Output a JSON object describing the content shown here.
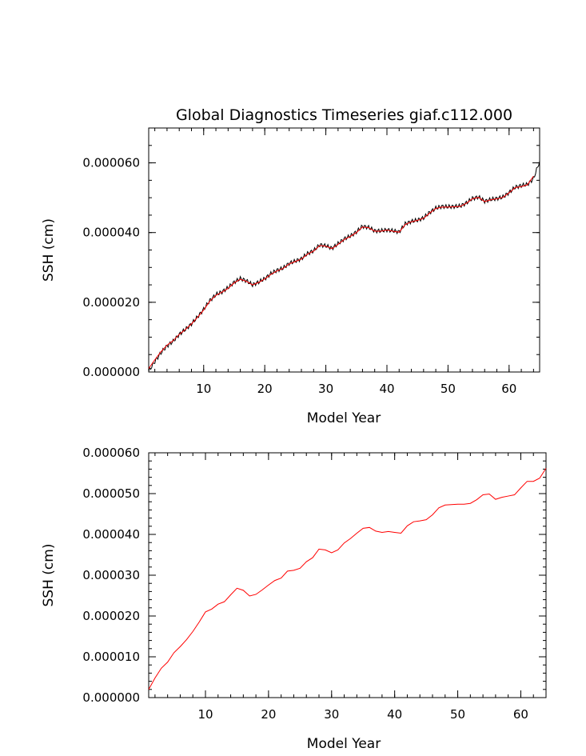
{
  "chart_data": [
    {
      "type": "line",
      "title": "Global Diagnostics Timeseries giaf.c112.000",
      "xlabel": "Model Year",
      "ylabel": "SSH (cm)",
      "xlim": [
        1,
        65
      ],
      "ylim": [
        0,
        7e-05
      ],
      "xticks": [
        10,
        20,
        30,
        40,
        50,
        60
      ],
      "yticks": [
        0.0,
        2e-05,
        4e-05,
        6e-05
      ],
      "ytick_labels": [
        "0.000000",
        "0.000020",
        "0.000040",
        "0.000060"
      ],
      "x_minor_step": 2,
      "y_minor_step": 5e-06,
      "grid": false,
      "series": [
        {
          "color": "#000000",
          "style": "monthly",
          "x": [
            1,
            2,
            3,
            4,
            5,
            6,
            7,
            8,
            9,
            10,
            11,
            12,
            13,
            14,
            15,
            16,
            17,
            18,
            19,
            20,
            21,
            22,
            23,
            24,
            25,
            26,
            27,
            28,
            29,
            30,
            31,
            32,
            33,
            34,
            35,
            36,
            37,
            38,
            39,
            40,
            41,
            42,
            43,
            44,
            45,
            46,
            47,
            48,
            49,
            50,
            51,
            52,
            53,
            54,
            55,
            56,
            57,
            58,
            59,
            60,
            61,
            62,
            63,
            64,
            65
          ],
          "values": [
            2e-07,
            3e-06,
            5.5e-06,
            7.5e-06,
            8.8e-06,
            1.08e-05,
            1.22e-05,
            1.38e-05,
            1.58e-05,
            1.8e-05,
            2.05e-05,
            2.22e-05,
            2.3e-05,
            2.42e-05,
            2.58e-05,
            2.68e-05,
            2.62e-05,
            2.5e-05,
            2.58e-05,
            2.68e-05,
            2.82e-05,
            2.92e-05,
            2.98e-05,
            3.12e-05,
            3.18e-05,
            3.25e-05,
            3.4e-05,
            3.48e-05,
            3.65e-05,
            3.62e-05,
            3.55e-05,
            3.68e-05,
            3.82e-05,
            3.9e-05,
            4.02e-05,
            4.18e-05,
            4.15e-05,
            4.05e-05,
            4.05e-05,
            4.08e-05,
            4.05e-05,
            4.02e-05,
            4.25e-05,
            4.32e-05,
            4.36e-05,
            4.42e-05,
            4.58e-05,
            4.7e-05,
            4.75e-05,
            4.74e-05,
            4.75e-05,
            4.76e-05,
            4.85e-05,
            4.98e-05,
            5.02e-05,
            4.9e-05,
            4.95e-05,
            4.98e-05,
            5.02e-05,
            5.15e-05,
            5.3e-05,
            5.35e-05,
            5.38e-05,
            5.55e-05,
            6.05e-05
          ]
        },
        {
          "color": "#ff0000",
          "style": "annual",
          "x": [
            1,
            2,
            3,
            4,
            5,
            6,
            7,
            8,
            9,
            10,
            11,
            12,
            13,
            14,
            15,
            16,
            17,
            18,
            19,
            20,
            21,
            22,
            23,
            24,
            25,
            26,
            27,
            28,
            29,
            30,
            31,
            32,
            33,
            34,
            35,
            36,
            37,
            38,
            39,
            40,
            41,
            42,
            43,
            44,
            45,
            46,
            47,
            48,
            49,
            50,
            51,
            52,
            53,
            54,
            55,
            56,
            57,
            58,
            59,
            60,
            61,
            62,
            63,
            64
          ],
          "values": [
            1e-06,
            3.5e-06,
            5.8e-06,
            7.7e-06,
            9e-06,
            1.08e-05,
            1.22e-05,
            1.38e-05,
            1.57e-05,
            1.78e-05,
            2.03e-05,
            2.2e-05,
            2.29e-05,
            2.4e-05,
            2.56e-05,
            2.66e-05,
            2.6e-05,
            2.5e-05,
            2.57e-05,
            2.67e-05,
            2.8e-05,
            2.9e-05,
            2.97e-05,
            3.1e-05,
            3.17e-05,
            3.24e-05,
            3.38e-05,
            3.47e-05,
            3.63e-05,
            3.61e-05,
            3.54e-05,
            3.66e-05,
            3.8e-05,
            3.89e-05,
            4e-05,
            4.16e-05,
            4.14e-05,
            4.04e-05,
            4.04e-05,
            4.07e-05,
            4.04e-05,
            4.01e-05,
            4.23e-05,
            4.31e-05,
            4.35e-05,
            4.41e-05,
            4.56e-05,
            4.69e-05,
            4.73e-05,
            4.73e-05,
            4.74e-05,
            4.75e-05,
            4.84e-05,
            4.97e-05,
            5.01e-05,
            4.89e-05,
            4.94e-05,
            4.97e-05,
            5.01e-05,
            5.14e-05,
            5.29e-05,
            5.32e-05,
            5.37e-05,
            5.62e-05
          ]
        }
      ]
    },
    {
      "type": "line",
      "title": "",
      "xlabel": "Model Year",
      "ylabel": "SSH (cm)",
      "xlim": [
        1,
        64
      ],
      "ylim": [
        0,
        6e-05
      ],
      "xticks": [
        10,
        20,
        30,
        40,
        50,
        60
      ],
      "yticks": [
        0.0,
        1e-05,
        2e-05,
        3e-05,
        4e-05,
        5e-05,
        6e-05
      ],
      "ytick_labels": [
        "0.000000",
        "0.000010",
        "0.000020",
        "0.000030",
        "0.000040",
        "0.000050",
        "0.000060"
      ],
      "x_minor_step": 2,
      "y_minor_step": 2e-06,
      "grid": false,
      "series": [
        {
          "color": "#ff0000",
          "style": "annual",
          "x": [
            1,
            2,
            3,
            4,
            5,
            6,
            7,
            8,
            9,
            10,
            11,
            12,
            13,
            14,
            15,
            16,
            17,
            18,
            19,
            20,
            21,
            22,
            23,
            24,
            25,
            26,
            27,
            28,
            29,
            30,
            31,
            32,
            33,
            34,
            35,
            36,
            37,
            38,
            39,
            40,
            41,
            42,
            43,
            44,
            45,
            46,
            47,
            48,
            49,
            50,
            51,
            52,
            53,
            54,
            55,
            56,
            57,
            58,
            59,
            60,
            61,
            62,
            63,
            64
          ],
          "values": [
            2e-06,
            4.8e-06,
            7.2e-06,
            8.7e-06,
            1.1e-05,
            1.25e-05,
            1.42e-05,
            1.62e-05,
            1.85e-05,
            2.1e-05,
            2.17e-05,
            2.29e-05,
            2.35e-05,
            2.52e-05,
            2.68e-05,
            2.63e-05,
            2.49e-05,
            2.53e-05,
            2.64e-05,
            2.76e-05,
            2.87e-05,
            2.93e-05,
            3.1e-05,
            3.12e-05,
            3.17e-05,
            3.33e-05,
            3.43e-05,
            3.64e-05,
            3.62e-05,
            3.55e-05,
            3.62e-05,
            3.79e-05,
            3.9e-05,
            4.03e-05,
            4.15e-05,
            4.17e-05,
            4.08e-05,
            4.05e-05,
            4.07e-05,
            4.05e-05,
            4.03e-05,
            4.21e-05,
            4.31e-05,
            4.33e-05,
            4.36e-05,
            4.48e-05,
            4.65e-05,
            4.72e-05,
            4.73e-05,
            4.74e-05,
            4.74e-05,
            4.76e-05,
            4.85e-05,
            4.97e-05,
            4.99e-05,
            4.86e-05,
            4.91e-05,
            4.94e-05,
            4.97e-05,
            5.14e-05,
            5.3e-05,
            5.3e-05,
            5.38e-05,
            5.62e-05
          ]
        }
      ]
    }
  ]
}
